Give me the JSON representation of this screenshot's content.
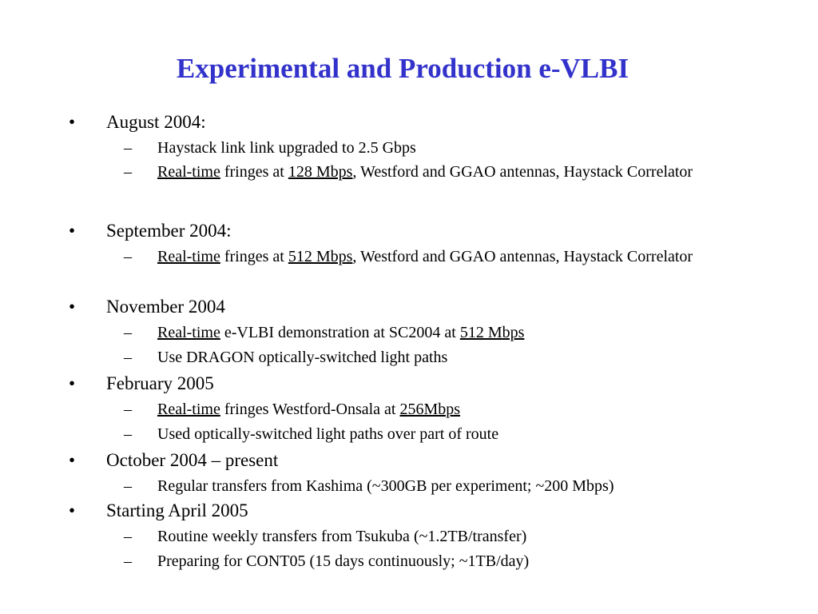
{
  "title": "Experimental and Production e-VLBI",
  "bullet_mark": "•",
  "sub_mark": "–",
  "items": [
    {
      "heading": "August 2004:",
      "subs": [
        {
          "parts": [
            "Haystack link link upgraded to 2.5 Gbps"
          ]
        },
        {
          "parts": [
            "Real-time",
            " fringes at ",
            "128 Mbps",
            ", Westford and GGAO antennas, Haystack Correlator"
          ]
        }
      ]
    },
    {
      "heading": "September 2004:",
      "subs": [
        {
          "parts": [
            "Real-time",
            " fringes at ",
            "512 Mbps",
            ", Westford and GGAO antennas, Haystack Correlator"
          ]
        }
      ]
    },
    {
      "heading": "November 2004",
      "subs": [
        {
          "parts": [
            "Real-time",
            " e-VLBI demonstration at SC2004 at ",
            "512 Mbps"
          ]
        },
        {
          "parts": [
            "Use DRAGON optically-switched light paths"
          ]
        }
      ]
    },
    {
      "heading": "February 2005",
      "subs": [
        {
          "parts": [
            "Real-time",
            " fringes Westford-Onsala at ",
            "256Mbps"
          ]
        },
        {
          "parts": [
            "Used optically-switched light paths over part of route"
          ]
        }
      ]
    },
    {
      "heading": "October 2004 – present",
      "subs": [
        {
          "parts": [
            "Regular transfers from Kashima (~300GB per experiment; ~200 Mbps)"
          ]
        }
      ]
    },
    {
      "heading": "Starting April 2005",
      "subs": [
        {
          "parts": [
            "Routine weekly transfers from Tsukuba (~1.2TB/transfer)"
          ]
        },
        {
          "parts": [
            "Preparing for CONT05 (15 days continuously; ~1TB/day)"
          ]
        }
      ]
    }
  ]
}
